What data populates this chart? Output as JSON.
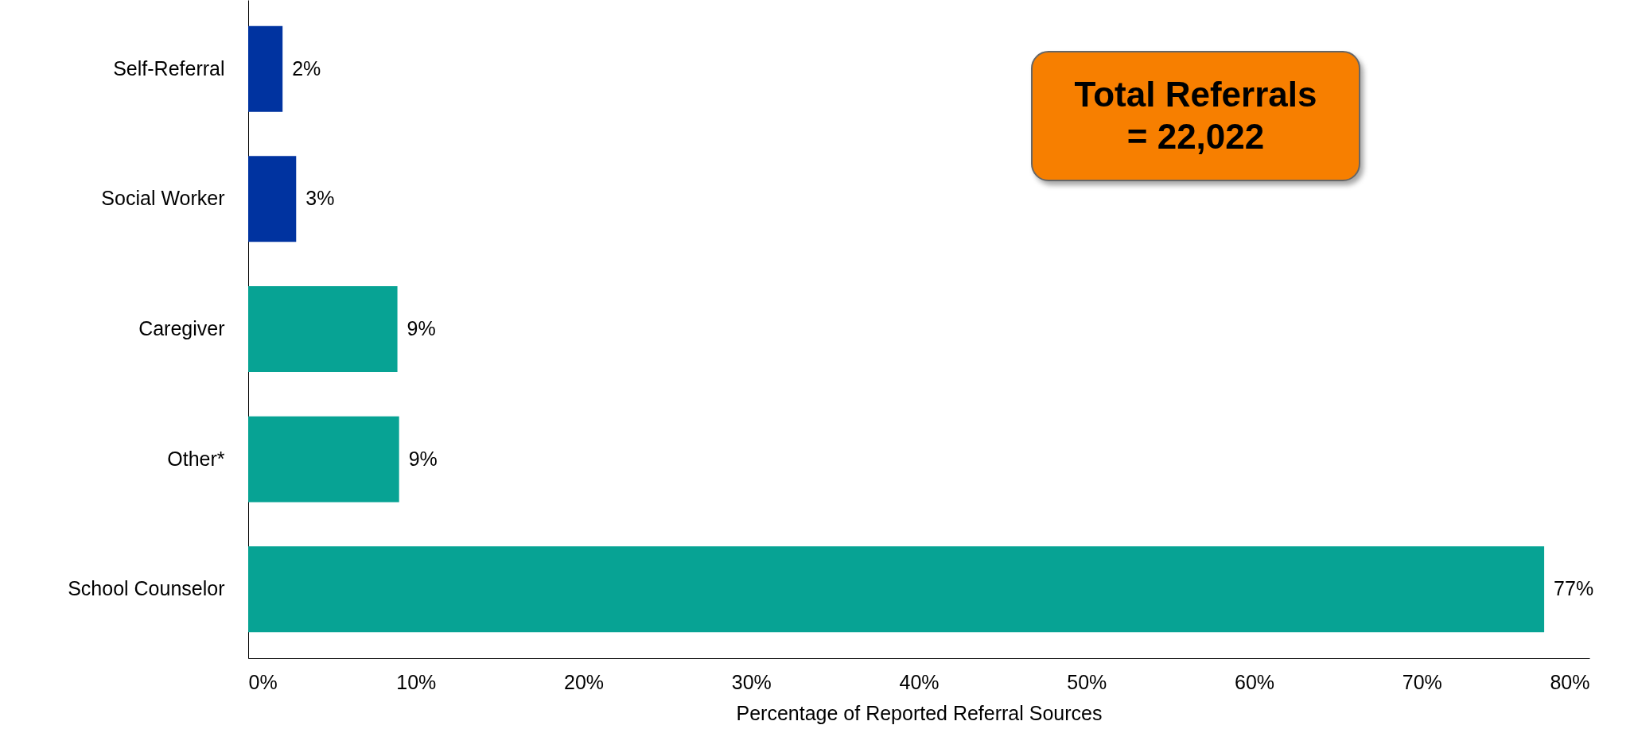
{
  "chart_data": {
    "type": "bar",
    "orientation": "horizontal",
    "xlabel": "Percentage of Reported Referral Sources",
    "categories": [
      "Self-Referral",
      "Social Worker",
      "Caregiver",
      "Other*",
      "School Counselor"
    ],
    "values": [
      2.05,
      2.86,
      8.9,
      9.0,
      77.3
    ],
    "colors": [
      "#0033a0",
      "#0033a0",
      "#07a394",
      "#07a394",
      "#07a394"
    ],
    "value_labels": [
      "2%",
      "3%",
      "9%",
      "9%",
      "77%"
    ],
    "xlim": [
      0,
      80
    ],
    "xticks": [
      {
        "value": 0,
        "label": "0%"
      },
      {
        "value": 10,
        "label": "10%"
      },
      {
        "value": 20,
        "label": "20%"
      },
      {
        "value": 30,
        "label": "30%"
      },
      {
        "value": 40,
        "label": "40%"
      },
      {
        "value": 50,
        "label": "50%"
      },
      {
        "value": 60,
        "label": "60%"
      },
      {
        "value": 70,
        "label": "70%"
      },
      {
        "value": 80,
        "label": "80%"
      }
    ],
    "annotations": [
      "Total Referrals = 22,022"
    ],
    "grid": false
  }
}
